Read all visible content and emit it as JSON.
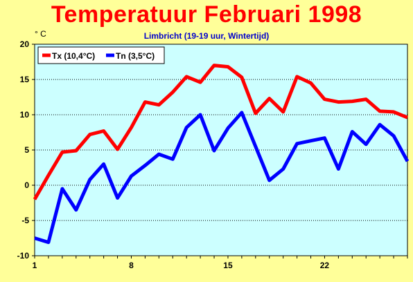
{
  "title": "Temperatuur Februari 1998",
  "unit_label": "° C",
  "subtitle": "Limbricht (19-19 uur, Wintertijd)",
  "colors": {
    "background": "#FFFF99",
    "plot_background": "#CCFFFF",
    "tx_series": "#FF0000",
    "tn_series": "#0000FF",
    "title": "#FF0000",
    "subtitle": "#0000CC"
  },
  "chart_data": {
    "type": "line",
    "title": "Temperatuur Februari 1998",
    "subtitle": "Limbricht (19-19 uur, Wintertijd)",
    "ylabel": "° C",
    "xlabel": "",
    "xlim": [
      1,
      28
    ],
    "ylim": [
      -10,
      20
    ],
    "x_ticks": [
      1,
      8,
      15,
      22
    ],
    "y_ticks": [
      20,
      15,
      10,
      5,
      0,
      -5,
      -10
    ],
    "grid": true,
    "legend_position": "top-left",
    "x": [
      1,
      2,
      3,
      4,
      5,
      6,
      7,
      8,
      9,
      10,
      11,
      12,
      13,
      14,
      15,
      16,
      17,
      18,
      19,
      20,
      21,
      22,
      23,
      24,
      25,
      26,
      27,
      28
    ],
    "series": [
      {
        "name": "Tx (10,4°C)",
        "color": "#FF0000",
        "values": [
          -2.0,
          1.4,
          4.7,
          4.9,
          7.2,
          7.7,
          5.1,
          8.2,
          11.8,
          11.4,
          13.2,
          15.4,
          14.6,
          17.0,
          16.8,
          15.3,
          10.2,
          12.3,
          10.4,
          15.4,
          14.5,
          12.2,
          11.8,
          11.9,
          12.2,
          10.5,
          10.4,
          9.6
        ]
      },
      {
        "name": "Tn (3,5°C)",
        "color": "#0000FF",
        "values": [
          -7.5,
          -8.1,
          -0.5,
          -3.5,
          0.8,
          3.0,
          -1.8,
          1.3,
          2.8,
          4.4,
          3.7,
          8.2,
          10.0,
          4.9,
          8.1,
          10.3,
          5.5,
          0.7,
          2.3,
          5.9,
          6.3,
          6.7,
          2.3,
          7.6,
          5.8,
          8.6,
          7.0,
          3.4
        ]
      }
    ]
  }
}
